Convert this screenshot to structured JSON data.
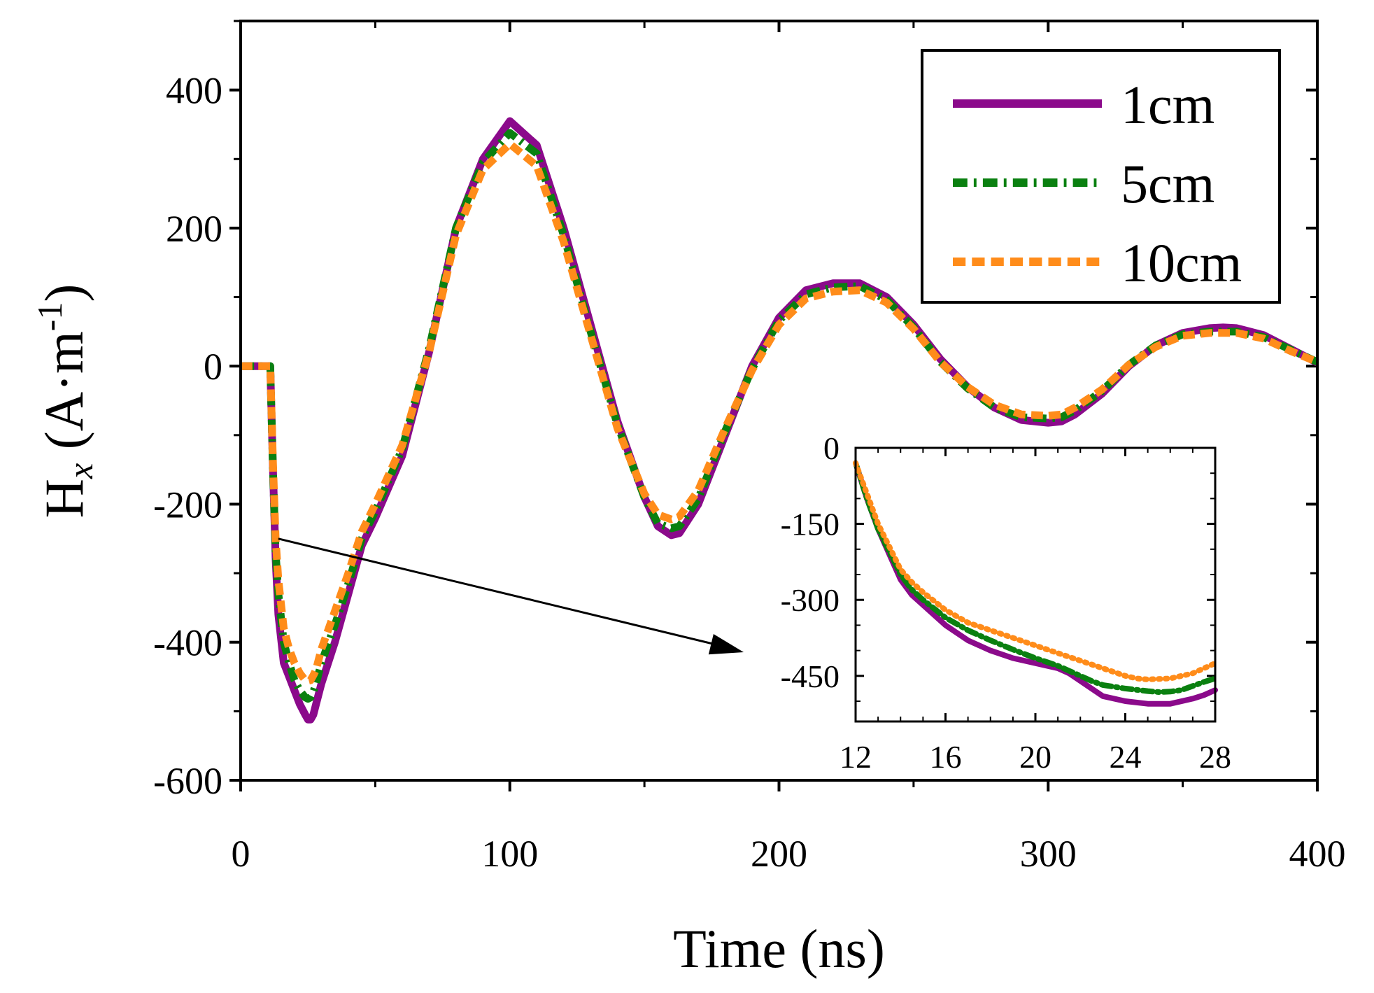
{
  "chart_data": [
    {
      "type": "line",
      "role": "main",
      "xlabel": "Time (ns)",
      "ylabel": {
        "base": "H",
        "sub": "x",
        "unit_prefix": "(A·m",
        "sup": "-1",
        "unit_suffix": ")"
      },
      "xlim": [
        0,
        400
      ],
      "ylim": [
        -600,
        500
      ],
      "xticks": [
        0,
        100,
        200,
        300,
        400
      ],
      "xtick_labels": [
        "0",
        "100",
        "200",
        "300",
        "400"
      ],
      "yticks": [
        -600,
        -400,
        -200,
        0,
        200,
        400
      ],
      "ytick_labels": [
        "-600",
        "-400",
        "-200",
        "0",
        "200",
        "400"
      ],
      "legend_position": "top-right",
      "series": [
        {
          "name": "1cm",
          "color": "#8B0A8B",
          "style": "solid",
          "x": [
            0,
            11,
            12,
            13,
            14,
            16,
            18,
            20,
            22,
            24,
            25,
            26,
            27,
            28,
            30,
            35,
            40,
            45,
            50,
            60,
            70,
            80,
            90,
            100,
            110,
            120,
            130,
            140,
            150,
            155,
            160,
            163,
            170,
            180,
            190,
            200,
            210,
            220,
            230,
            240,
            250,
            260,
            270,
            280,
            290,
            300,
            305,
            310,
            320,
            330,
            340,
            350,
            360,
            365,
            370,
            380,
            390,
            400
          ],
          "y": [
            0,
            0,
            -150,
            -280,
            -360,
            -430,
            -450,
            -470,
            -490,
            -505,
            -512,
            -512,
            -505,
            -490,
            -460,
            -400,
            -330,
            -260,
            -220,
            -130,
            20,
            200,
            300,
            355,
            320,
            200,
            60,
            -80,
            -190,
            -232,
            -245,
            -242,
            -200,
            -100,
            0,
            70,
            110,
            120,
            120,
            100,
            60,
            10,
            -30,
            -60,
            -78,
            -82,
            -80,
            -70,
            -40,
            0,
            30,
            48,
            55,
            56,
            55,
            45,
            25,
            5
          ]
        },
        {
          "name": "5cm",
          "color": "#0A8010",
          "style": "dash-dot",
          "x": [
            0,
            11,
            12,
            13,
            14,
            16,
            18,
            20,
            22,
            24,
            25,
            26,
            27,
            28,
            30,
            35,
            40,
            45,
            50,
            60,
            70,
            80,
            90,
            100,
            110,
            120,
            130,
            140,
            150,
            155,
            160,
            163,
            170,
            180,
            190,
            200,
            210,
            220,
            230,
            240,
            250,
            260,
            270,
            280,
            290,
            300,
            305,
            310,
            320,
            330,
            340,
            350,
            360,
            365,
            370,
            380,
            390,
            400
          ],
          "y": [
            0,
            0,
            -150,
            -270,
            -330,
            -400,
            -430,
            -455,
            -470,
            -480,
            -482,
            -480,
            -472,
            -460,
            -430,
            -375,
            -315,
            -250,
            -210,
            -120,
            25,
            200,
            295,
            338,
            308,
            190,
            50,
            -85,
            -190,
            -228,
            -235,
            -232,
            -192,
            -94,
            -4,
            66,
            104,
            114,
            116,
            96,
            56,
            6,
            -32,
            -60,
            -74,
            -76,
            -74,
            -64,
            -36,
            2,
            30,
            46,
            50,
            50,
            50,
            42,
            24,
            6
          ]
        },
        {
          "name": "10cm",
          "color": "#FF8C1A",
          "style": "dashed",
          "x": [
            0,
            11,
            12,
            13,
            14,
            16,
            18,
            20,
            22,
            24,
            25,
            26,
            27,
            28,
            30,
            35,
            40,
            45,
            50,
            60,
            70,
            80,
            90,
            100,
            110,
            120,
            130,
            140,
            150,
            155,
            160,
            163,
            170,
            180,
            190,
            200,
            210,
            220,
            230,
            240,
            250,
            260,
            270,
            280,
            290,
            300,
            305,
            310,
            320,
            330,
            340,
            350,
            360,
            365,
            370,
            380,
            390,
            400
          ],
          "y": [
            0,
            0,
            -140,
            -250,
            -310,
            -380,
            -410,
            -430,
            -445,
            -455,
            -456,
            -455,
            -448,
            -440,
            -410,
            -355,
            -300,
            -240,
            -200,
            -115,
            20,
            190,
            285,
            322,
            290,
            180,
            45,
            -90,
            -185,
            -215,
            -222,
            -218,
            -180,
            -90,
            -6,
            60,
            98,
            108,
            110,
            92,
            54,
            6,
            -30,
            -56,
            -70,
            -72,
            -70,
            -60,
            -34,
            2,
            28,
            44,
            48,
            48,
            48,
            40,
            22,
            6
          ]
        }
      ]
    },
    {
      "type": "line",
      "role": "inset",
      "xlim": [
        12,
        28
      ],
      "ylim": [
        -540,
        0
      ],
      "xticks": [
        12,
        16,
        20,
        24,
        28
      ],
      "xtick_labels": [
        "12",
        "16",
        "20",
        "24",
        "28"
      ],
      "yticks": [
        0,
        -150,
        -300,
        -450
      ],
      "ytick_labels": [
        "0",
        "-150",
        "-300",
        "-450"
      ],
      "series": [
        {
          "name": "1cm",
          "color": "#8B0A8B",
          "style": "solid",
          "x": [
            12,
            12.5,
            13,
            13.5,
            14,
            14.5,
            15,
            16,
            17,
            18,
            19,
            20,
            21,
            21.5,
            22,
            22.5,
            23,
            24,
            25,
            26,
            27,
            27.5,
            28
          ],
          "y": [
            -30,
            -100,
            -160,
            -210,
            -260,
            -290,
            -310,
            -350,
            -380,
            -400,
            -415,
            -425,
            -435,
            -445,
            -460,
            -475,
            -490,
            -500,
            -505,
            -505,
            -495,
            -488,
            -478
          ]
        },
        {
          "name": "5cm",
          "color": "#0A8010",
          "style": "dash-dot",
          "x": [
            12,
            12.5,
            13,
            13.5,
            14,
            14.5,
            15,
            16,
            17,
            18,
            19,
            20,
            21,
            21.5,
            22,
            22.5,
            23,
            24,
            25,
            25.5,
            26,
            26.5,
            27,
            27.5,
            28
          ],
          "y": [
            -30,
            -100,
            -160,
            -205,
            -250,
            -280,
            -300,
            -335,
            -360,
            -380,
            -398,
            -415,
            -430,
            -440,
            -450,
            -460,
            -468,
            -475,
            -480,
            -482,
            -481,
            -478,
            -470,
            -462,
            -455
          ]
        },
        {
          "name": "10cm",
          "color": "#FF8C1A",
          "style": "dotted",
          "x": [
            12,
            12.5,
            13,
            13.5,
            14,
            14.5,
            15,
            16,
            17,
            18,
            19,
            20,
            21,
            22,
            23,
            24,
            24.5,
            25,
            26,
            27,
            27.5,
            28
          ],
          "y": [
            -30,
            -90,
            -150,
            -195,
            -240,
            -265,
            -285,
            -320,
            -345,
            -360,
            -375,
            -390,
            -405,
            -420,
            -435,
            -450,
            -455,
            -457,
            -455,
            -445,
            -435,
            -425
          ]
        }
      ]
    }
  ]
}
